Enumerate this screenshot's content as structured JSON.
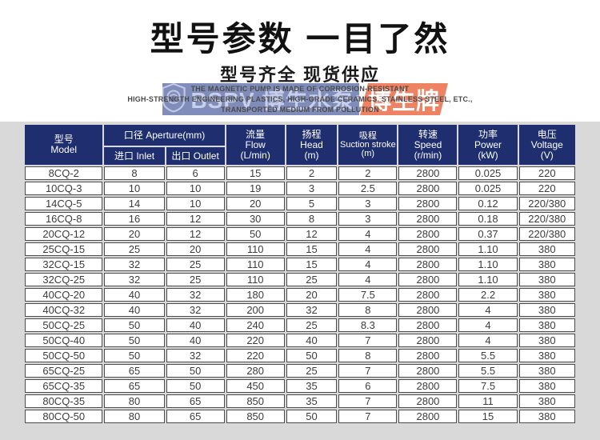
{
  "hero": {
    "title": "型号参数  一目了然",
    "subtitle": "型号齐全  现货供应",
    "description_lines": [
      "THE MAGNETIC PUMP IS MADE OF CORROSION-RESISTANT",
      "HIGH-STRENGTH ENGINEERING PLASTICS, HIGH-GRADE CERAMICS, STAINLESS STEEL, ETC.,",
      "TRANSPORTED MEDIUM FROM POLLUTION"
    ]
  },
  "watermark": {
    "shield_icon": "shield-logo",
    "brand_text": "BSPV 博生水泵",
    "registered_mark": "®",
    "badge_text": "博生牌"
  },
  "colors": {
    "header_navy": "#1f2e6e",
    "panel_gray": "#d9d9d9",
    "cell_border": "#4d4d4d",
    "band_blue": "#6a78ae",
    "band_orange": "#ee8263",
    "body_text": "#3c3c3c"
  },
  "table": {
    "column_keys": [
      "model",
      "inlet",
      "outlet",
      "flow",
      "head",
      "suction_stroke",
      "speed",
      "power",
      "voltage"
    ],
    "header": {
      "model": {
        "zh": "型号",
        "en": "Model"
      },
      "aperture": {
        "zh": "口径",
        "en": "Aperture(mm)"
      },
      "inlet": {
        "zh": "进口",
        "en": "Inlet"
      },
      "outlet": {
        "zh": "出口",
        "en": "Outlet"
      },
      "flow": {
        "zh": "流量",
        "en": "Flow",
        "unit": "(L/min)"
      },
      "head": {
        "zh": "扬程",
        "en": "Head",
        "unit": "(m)"
      },
      "suction": {
        "zh": "吸程",
        "en": "Suction stroke",
        "unit": "(m)"
      },
      "speed": {
        "zh": "转速",
        "en": "Speed",
        "unit": "(r/min)"
      },
      "power": {
        "zh": "功率",
        "en": "Power",
        "unit": "(kW)"
      },
      "voltage": {
        "zh": "电压",
        "en": "Voltage",
        "unit": "(V)"
      }
    },
    "rows": [
      [
        "8CQ-2",
        "8",
        "6",
        "15",
        "2",
        "2",
        "2800",
        "0.025",
        "220"
      ],
      [
        "10CQ-3",
        "10",
        "10",
        "19",
        "3",
        "2.5",
        "2800",
        "0.025",
        "220"
      ],
      [
        "14CQ-5",
        "14",
        "10",
        "20",
        "5",
        "3",
        "2800",
        "0.12",
        "220/380"
      ],
      [
        "16CQ-8",
        "16",
        "12",
        "30",
        "8",
        "3",
        "2800",
        "0.18",
        "220/380"
      ],
      [
        "20CQ-12",
        "20",
        "12",
        "50",
        "12",
        "4",
        "2800",
        "0.37",
        "220/380"
      ],
      [
        "25CQ-15",
        "25",
        "20",
        "110",
        "15",
        "4",
        "2800",
        "1.10",
        "380"
      ],
      [
        "32CQ-15",
        "32",
        "25",
        "110",
        "15",
        "4",
        "2800",
        "1.10",
        "380"
      ],
      [
        "32CQ-25",
        "32",
        "25",
        "110",
        "25",
        "4",
        "2800",
        "1.10",
        "380"
      ],
      [
        "40CQ-20",
        "40",
        "32",
        "180",
        "20",
        "7.5",
        "2800",
        "2.2",
        "380"
      ],
      [
        "40CQ-32",
        "40",
        "32",
        "200",
        "32",
        "8",
        "2800",
        "4",
        "380"
      ],
      [
        "50CQ-25",
        "50",
        "40",
        "240",
        "25",
        "8.3",
        "2800",
        "4",
        "380"
      ],
      [
        "50CQ-40",
        "50",
        "40",
        "220",
        "40",
        "7",
        "2800",
        "4",
        "380"
      ],
      [
        "50CQ-50",
        "50",
        "32",
        "220",
        "50",
        "8",
        "2800",
        "5.5",
        "380"
      ],
      [
        "65CQ-25",
        "65",
        "50",
        "280",
        "25",
        "7",
        "2800",
        "5.5",
        "380"
      ],
      [
        "65CQ-35",
        "65",
        "50",
        "450",
        "35",
        "6",
        "2800",
        "7.5",
        "380"
      ],
      [
        "80CQ-35",
        "80",
        "65",
        "850",
        "35",
        "7",
        "2800",
        "11",
        "380"
      ],
      [
        "80CQ-50",
        "80",
        "65",
        "850",
        "50",
        "7",
        "2800",
        "15",
        "380"
      ]
    ]
  }
}
